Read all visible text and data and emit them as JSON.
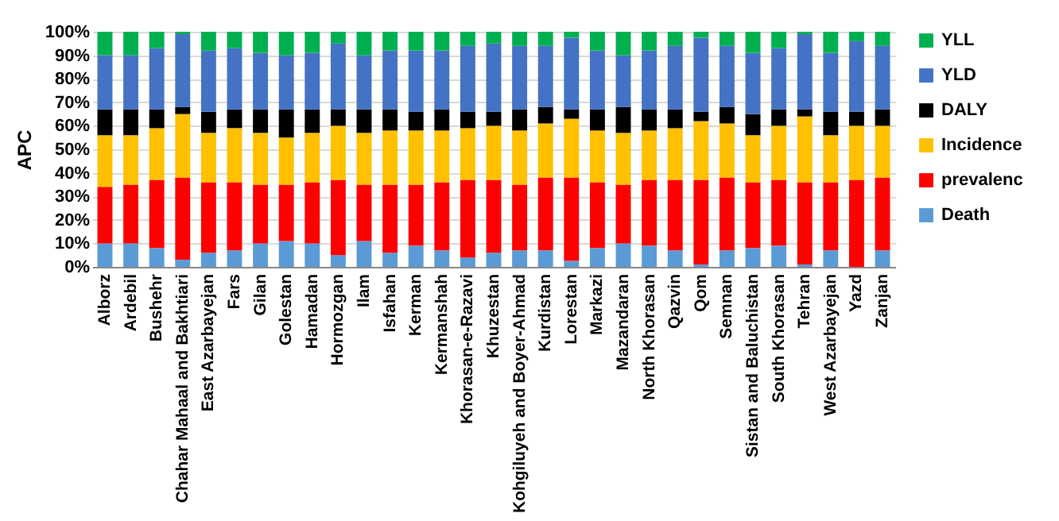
{
  "chart_data": {
    "type": "bar",
    "ylabel": "APC",
    "stacked": true,
    "grid": "y",
    "legend": "right",
    "categories": [
      "Alborz",
      "Ardebil",
      "Bushehr",
      "Chahar Mahaal and Bakhtiari",
      "East Azarbayejan",
      "Fars",
      "Gilan",
      "Golestan",
      "Hamadan",
      "Hormozgan",
      "Ilam",
      "Isfahan",
      "Kerman",
      "Kermanshah",
      "Khorasan-e-Razavi",
      "Khuzestan",
      "Kohgiluyeh and Boyer-Ahmad",
      "Kurdistan",
      "Lorestan",
      "Markazi",
      "Mazandaran",
      "North Khorasan",
      "Qazvin",
      "Qom",
      "Semnan",
      "Sistan and Baluchistan",
      "South Khorasan",
      "Tehran",
      "West Azarbayejan",
      "Yazd",
      "Zanjan"
    ],
    "ylim": [
      0,
      100
    ],
    "yticks": [
      {
        "value": 0,
        "label": "0%"
      },
      {
        "value": 10,
        "label": "10%"
      },
      {
        "value": 20,
        "label": "20%"
      },
      {
        "value": 30,
        "label": "30%"
      },
      {
        "value": 40,
        "label": "40%"
      },
      {
        "value": 50,
        "label": "50%"
      },
      {
        "value": 60,
        "label": "60%"
      },
      {
        "value": 70,
        "label": "70%"
      },
      {
        "value": 80,
        "label": "80%"
      },
      {
        "value": 90,
        "label": "90%"
      },
      {
        "value": 100,
        "label": "100%"
      }
    ],
    "series": [
      {
        "name": "Death",
        "color": "#5b9bd5",
        "values": [
          10,
          10,
          8,
          3,
          6,
          7,
          10,
          11,
          10,
          5,
          11,
          6,
          9,
          7,
          4,
          6,
          7,
          7,
          2.5,
          8,
          10,
          9,
          7,
          1,
          7,
          8,
          9,
          1,
          7,
          0,
          7
        ]
      },
      {
        "name": "prevalenc",
        "color": "#ff0000",
        "values": [
          24,
          25,
          29,
          35,
          30,
          29,
          25,
          24,
          26,
          32,
          24,
          29,
          26,
          29,
          33,
          31,
          28,
          31,
          35.5,
          28,
          25,
          28,
          30,
          36,
          31,
          28,
          28,
          35,
          29,
          37,
          31
        ]
      },
      {
        "name": "Incidence",
        "color": "#ffc000",
        "values": [
          22,
          21,
          22,
          27,
          21,
          23,
          22,
          20,
          21,
          23,
          22,
          23,
          23,
          22,
          22,
          23,
          23,
          23,
          25,
          22,
          22,
          21,
          22,
          25,
          23,
          20,
          23,
          28,
          20,
          23,
          22
        ]
      },
      {
        "name": "DALY",
        "color": "#000000",
        "values": [
          11,
          11,
          8,
          3,
          9,
          8,
          10,
          12,
          10,
          7,
          10,
          9,
          8,
          9,
          7,
          6,
          9,
          7,
          4,
          9,
          11,
          9,
          8,
          4,
          7,
          9,
          7,
          3,
          10,
          6,
          7
        ]
      },
      {
        "name": "YLD",
        "color": "#4472c4",
        "values": [
          23,
          23,
          26,
          31,
          26,
          26,
          24,
          23,
          24,
          28,
          23,
          25,
          26,
          25,
          28,
          29,
          27,
          26,
          30.5,
          25,
          22,
          25,
          27,
          31.5,
          26,
          26,
          26,
          32,
          25,
          30,
          27
        ]
      },
      {
        "name": "YLL",
        "color": "#00b050",
        "values": [
          10,
          10,
          7,
          1,
          8,
          7,
          9,
          10,
          9,
          5,
          10,
          8,
          8,
          8,
          6,
          5,
          6,
          6,
          2.5,
          8,
          10,
          8,
          6,
          2.5,
          6,
          9,
          7,
          1,
          9,
          4,
          6
        ]
      }
    ]
  }
}
